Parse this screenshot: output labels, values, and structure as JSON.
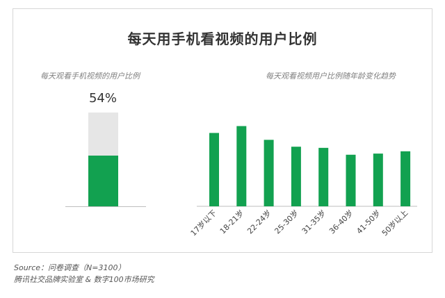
{
  "title": "每天用手机看视频的用户比例",
  "left_panel": {
    "subtitle": "每天观看手机视频的用户比例",
    "value_label": "54%"
  },
  "right_panel": {
    "subtitle": "每天观看视频用户比例随年龄变化趋势"
  },
  "source": {
    "line1": "Source：问卷调查（N=3100）",
    "line2": "腾讯社交品牌实验室 & 数字100市场研究"
  },
  "colors": {
    "bar": "#12a150",
    "bar_background": "#e6e6e6",
    "baseline": "#bdbdbd"
  },
  "chart_data": [
    {
      "type": "bar",
      "title": "每天观看手机视频的用户比例",
      "categories": [
        ""
      ],
      "values": [
        54
      ],
      "value_labels": [
        "54%"
      ],
      "ylim": [
        0,
        100
      ]
    },
    {
      "type": "bar",
      "title": "每天观看视频用户比例随年龄变化趋势",
      "categories": [
        "17岁以下",
        "18-21岁",
        "22-24岁",
        "25-30岁",
        "31-35岁",
        "36-40岁",
        "41-50岁",
        "50岁以上"
      ],
      "values": [
        64,
        70,
        58,
        52,
        51,
        45,
        46,
        48
      ],
      "ylim": [
        0,
        100
      ],
      "grid": false
    }
  ]
}
